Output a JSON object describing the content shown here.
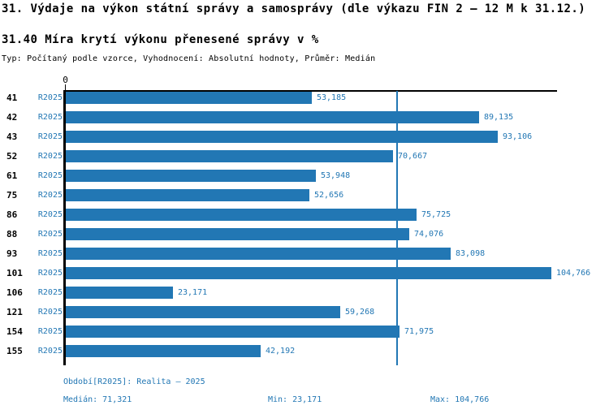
{
  "header": {
    "title": "31. Výdaje na výkon státní správy a samosprávy (dle výkazu FIN 2 – 12 M k 31.12.)",
    "subtitle": "31.40 Míra krytí výkonu přenesené správy v %",
    "meta": "Typ: Počítaný podle vzorce, Vyhodnocení: Absolutní hodnoty, Průměr: Medián"
  },
  "chart_data": {
    "type": "bar",
    "orientation": "horizontal",
    "title": "31.40 Míra krytí výkonu přenesené správy v %",
    "series_label": "R2025",
    "categories": [
      "41",
      "42",
      "43",
      "52",
      "61",
      "75",
      "86",
      "88",
      "93",
      "101",
      "106",
      "121",
      "154",
      "155"
    ],
    "values": [
      53.185,
      89.135,
      93.106,
      70.667,
      53.948,
      52.656,
      75.725,
      74.076,
      83.098,
      104.766,
      23.171,
      59.268,
      71.975,
      42.192
    ],
    "value_labels": [
      "53,185",
      "89,135",
      "93,106",
      "70,667",
      "53,948",
      "52,656",
      "75,725",
      "74,076",
      "83,098",
      "104,766",
      "23,171",
      "59,268",
      "71,975",
      "42,192"
    ],
    "x_axis": {
      "zero_label": "0",
      "range_max": 106,
      "grid": false
    },
    "median_line_value": 71.321,
    "legend_position": "none",
    "bar_color": "#2277b4",
    "accent_text_color": "#2277b4"
  },
  "footer": {
    "period": "Období[R2025]: Realita – 2025",
    "median": "Medián: 71,321",
    "min": "Min: 23,171",
    "max": "Max: 104,766"
  }
}
